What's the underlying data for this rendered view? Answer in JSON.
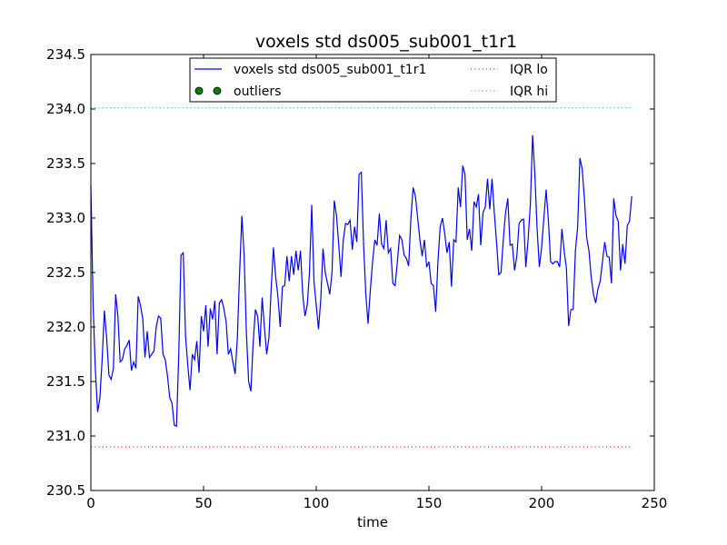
{
  "chart_data": {
    "type": "line",
    "title": "voxels std ds005_sub001_t1r1",
    "xlabel": "time",
    "ylabel": "",
    "xlim": [
      0,
      250
    ],
    "ylim": [
      230.5,
      234.5
    ],
    "xticks": [
      "0",
      "50",
      "100",
      "150",
      "200",
      "250"
    ],
    "xtick_values": [
      0,
      50,
      100,
      150,
      200,
      250
    ],
    "yticks": [
      "230.5",
      "231.0",
      "231.5",
      "232.0",
      "232.5",
      "233.0",
      "233.5",
      "234.0",
      "234.5"
    ],
    "ytick_values": [
      230.5,
      231.0,
      231.5,
      232.0,
      232.5,
      233.0,
      233.5,
      234.0,
      234.5
    ],
    "grid": false,
    "legend_position": "top-center",
    "legend": [
      {
        "label": "voxels std ds005_sub001_t1r1",
        "style": "line",
        "color": "#0000ff"
      },
      {
        "label": "outliers",
        "style": "marker",
        "color": "#008000"
      },
      {
        "label": "IQR lo",
        "style": "dotted",
        "color": "#ff0000"
      },
      {
        "label": "IQR hi",
        "style": "dotted",
        "color": "#00bfbf"
      }
    ],
    "series": [
      {
        "name": "voxels std ds005_sub001_t1r1",
        "color": "#0000ff",
        "x_start": 0,
        "x_step": 1,
        "values": [
          233.3,
          232.2,
          231.6,
          231.22,
          231.35,
          231.7,
          232.15,
          231.9,
          231.56,
          231.52,
          231.62,
          232.3,
          232.1,
          231.68,
          231.7,
          231.8,
          231.83,
          231.88,
          231.6,
          231.68,
          231.62,
          232.28,
          232.2,
          232.08,
          231.72,
          231.96,
          231.72,
          231.75,
          231.78,
          232.0,
          232.1,
          232.08,
          231.75,
          231.7,
          231.55,
          231.35,
          231.3,
          231.1,
          231.09,
          231.75,
          232.66,
          232.68,
          231.92,
          231.65,
          231.42,
          231.75,
          231.7,
          231.87,
          231.58,
          232.1,
          231.96,
          232.2,
          231.82,
          232.17,
          232.07,
          232.24,
          231.75,
          232.22,
          232.25,
          232.17,
          232.05,
          231.75,
          231.8,
          231.68,
          231.57,
          231.9,
          232.5,
          233.02,
          232.66,
          231.95,
          231.5,
          231.41,
          231.85,
          232.16,
          232.1,
          231.82,
          232.27,
          232.0,
          231.75,
          231.9,
          232.35,
          232.73,
          232.46,
          232.28,
          232.0,
          232.37,
          232.38,
          232.65,
          232.42,
          232.65,
          232.48,
          232.7,
          232.52,
          232.7,
          232.3,
          232.1,
          232.2,
          232.5,
          233.12,
          232.42,
          232.2,
          231.98,
          232.25,
          232.72,
          232.5,
          232.4,
          232.3,
          232.5,
          233.16,
          233.02,
          232.75,
          232.46,
          232.8,
          232.95,
          232.94,
          232.98,
          232.71,
          232.92,
          232.78,
          233.4,
          233.42,
          232.76,
          232.3,
          232.03,
          232.34,
          232.6,
          232.8,
          232.75,
          233.04,
          232.76,
          232.72,
          232.98,
          232.68,
          232.72,
          232.4,
          232.38,
          232.6,
          232.84,
          232.8,
          232.66,
          232.63,
          232.56,
          233.0,
          233.28,
          233.2,
          233.0,
          232.8,
          232.65,
          232.8,
          232.55,
          232.6,
          232.4,
          232.38,
          232.14,
          232.6,
          232.92,
          233.0,
          232.86,
          232.68,
          232.78,
          232.37,
          232.8,
          232.78,
          233.28,
          233.1,
          233.48,
          233.4,
          232.8,
          232.9,
          232.7,
          233.15,
          233.1,
          233.22,
          232.75,
          233.05,
          233.1,
          233.36,
          233.08,
          233.36,
          233.05,
          232.78,
          232.48,
          232.5,
          232.8,
          233.05,
          233.18,
          232.75,
          232.76,
          232.52,
          232.65,
          232.95,
          232.98,
          232.99,
          232.55,
          232.8,
          233.12,
          233.76,
          233.4,
          232.9,
          232.55,
          232.73,
          233.0,
          233.26,
          232.98,
          232.6,
          232.58,
          232.6,
          232.6,
          232.55,
          232.9,
          232.7,
          232.54,
          232.01,
          232.16,
          232.16,
          232.7,
          232.92,
          233.55,
          233.45,
          233.18,
          232.82,
          232.7,
          232.46,
          232.3,
          232.22,
          232.35,
          232.42,
          232.6,
          232.78,
          232.65,
          232.64,
          232.4,
          233.18,
          233.02,
          232.97,
          232.52,
          232.76,
          232.58,
          232.93,
          232.97,
          233.2
        ]
      },
      {
        "name": "IQR lo",
        "color": "#ff0000",
        "x": [
          0,
          240
        ],
        "values": [
          230.9,
          230.9
        ]
      },
      {
        "name": "IQR hi",
        "color": "#00bfbf",
        "x": [
          0,
          240
        ],
        "values": [
          234.01,
          234.01
        ]
      }
    ]
  }
}
